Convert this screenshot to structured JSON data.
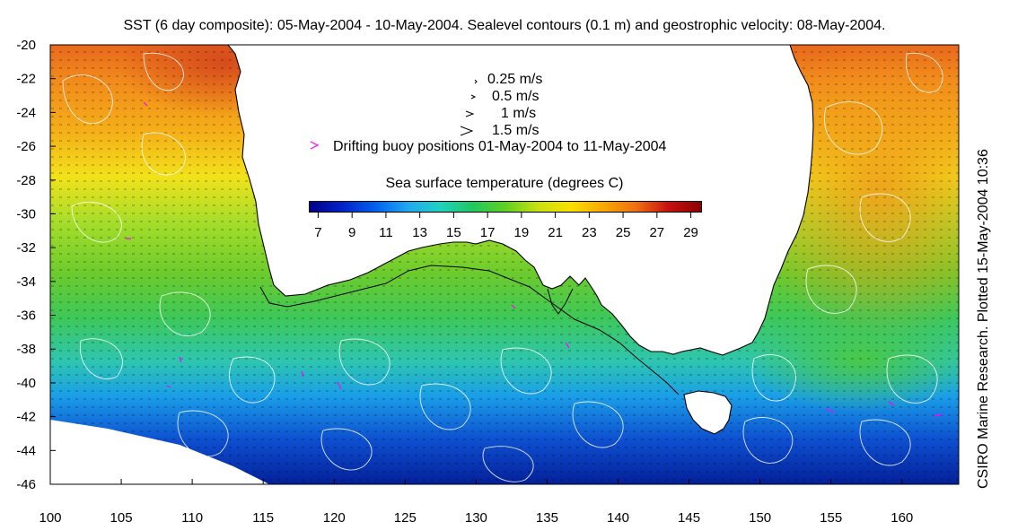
{
  "title": "SST (6 day composite): 05-May-2004 - 10-May-2004. Sealevel contours (0.1 m) and geostrophic velocity: 08-May-2004.",
  "credit": "CSIRO Marine Research. Plotted 15-May-2004 10:36",
  "axes": {
    "x_ticks": [
      "100",
      "105",
      "110",
      "115",
      "120",
      "125",
      "130",
      "135",
      "140",
      "145",
      "150",
      "155",
      "160"
    ],
    "y_ticks": [
      "-20",
      "-22",
      "-24",
      "-26",
      "-28",
      "-30",
      "-32",
      "-34",
      "-36",
      "-38",
      "-40",
      "-42",
      "-44",
      "-46"
    ],
    "lon_range": [
      100,
      164
    ],
    "lat_range": [
      -46,
      -20
    ]
  },
  "legend": {
    "velocity": [
      {
        "label": "0.25 m/s"
      },
      {
        "label": "0.5 m/s"
      },
      {
        "label": "1 m/s"
      },
      {
        "label": "1.5 m/s"
      }
    ],
    "buoy": {
      "label": "Drifting buoy positions 01-May-2004 to 11-May-2004",
      "color": "#ff00ff"
    }
  },
  "colorbar": {
    "title": "Sea surface temperature (degrees C)",
    "ticks": [
      "7",
      "9",
      "11",
      "13",
      "15",
      "17",
      "19",
      "21",
      "23",
      "25",
      "27",
      "29"
    ],
    "range": [
      6.5,
      29.5
    ],
    "colors": [
      "#00008b",
      "#0022c8",
      "#0060f0",
      "#20a8f0",
      "#20d0c0",
      "#20c860",
      "#60d020",
      "#c8e010",
      "#f8e000",
      "#f8a800",
      "#f07010",
      "#c81010",
      "#8b0000"
    ]
  }
}
